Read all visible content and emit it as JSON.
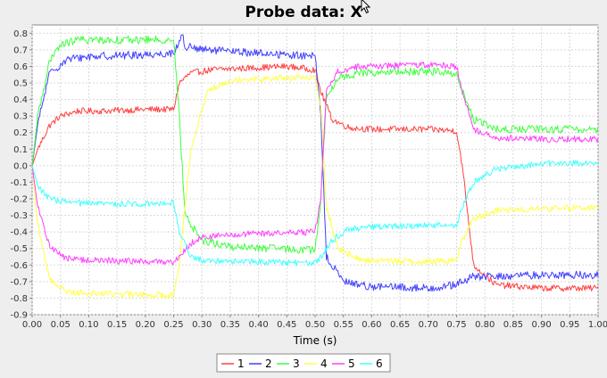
{
  "chart_data": {
    "type": "line",
    "title": "Probe data: X",
    "xlabel": "Time (s)",
    "ylabel": "",
    "xlim": [
      0,
      1.0
    ],
    "ylim": [
      -0.9,
      0.85
    ],
    "grid": true,
    "legend_position": "bottom",
    "x_ticks": [
      "0.00",
      "0.05",
      "0.10",
      "0.15",
      "0.20",
      "0.25",
      "0.30",
      "0.35",
      "0.40",
      "0.45",
      "0.50",
      "0.55",
      "0.60",
      "0.65",
      "0.70",
      "0.75",
      "0.80",
      "0.85",
      "0.90",
      "0.95",
      "1.00"
    ],
    "y_ticks": [
      "0.8",
      "0.7",
      "0.6",
      "0.5",
      "0.4",
      "0.3",
      "0.2",
      "0.1",
      "0.0",
      "-0.1",
      "-0.2",
      "-0.3",
      "-0.4",
      "-0.5",
      "-0.6",
      "-0.7",
      "-0.8",
      "-0.9"
    ],
    "series": [
      {
        "name": "1",
        "color": "#ff4040",
        "noise": 0.012,
        "x": [
          0,
          0.01,
          0.03,
          0.05,
          0.08,
          0.12,
          0.2,
          0.25,
          0.26,
          0.28,
          0.32,
          0.45,
          0.5,
          0.51,
          0.53,
          0.56,
          0.6,
          0.7,
          0.75,
          0.76,
          0.78,
          0.82,
          0.9,
          1.0
        ],
        "y": [
          0.0,
          0.1,
          0.24,
          0.3,
          0.33,
          0.33,
          0.34,
          0.34,
          0.5,
          0.56,
          0.58,
          0.6,
          0.58,
          0.45,
          0.28,
          0.23,
          0.22,
          0.22,
          0.21,
          0.0,
          -0.6,
          -0.72,
          -0.74,
          -0.74
        ]
      },
      {
        "name": "2",
        "color": "#4040ff",
        "noise": 0.015,
        "x": [
          0,
          0.01,
          0.03,
          0.06,
          0.1,
          0.2,
          0.25,
          0.26,
          0.27,
          0.3,
          0.4,
          0.5,
          0.51,
          0.52,
          0.55,
          0.6,
          0.7,
          0.75,
          0.76,
          0.78,
          0.82,
          0.9,
          1.0
        ],
        "y": [
          0.0,
          0.25,
          0.55,
          0.64,
          0.66,
          0.67,
          0.68,
          0.75,
          0.72,
          0.7,
          0.68,
          0.66,
          0.3,
          -0.55,
          -0.7,
          -0.73,
          -0.74,
          -0.72,
          -0.7,
          -0.67,
          -0.67,
          -0.66,
          -0.66
        ],
        "spikes": [
          [
            0.265,
            0.79
          ]
        ]
      },
      {
        "name": "3",
        "color": "#40ff40",
        "noise": 0.015,
        "x": [
          0,
          0.01,
          0.03,
          0.05,
          0.08,
          0.15,
          0.25,
          0.26,
          0.27,
          0.3,
          0.35,
          0.5,
          0.51,
          0.52,
          0.54,
          0.58,
          0.7,
          0.75,
          0.76,
          0.78,
          0.82,
          0.9,
          1.0
        ],
        "y": [
          0.0,
          0.3,
          0.62,
          0.73,
          0.76,
          0.76,
          0.76,
          0.3,
          -0.3,
          -0.45,
          -0.49,
          -0.51,
          -0.2,
          0.4,
          0.53,
          0.56,
          0.57,
          0.56,
          0.45,
          0.28,
          0.22,
          0.22,
          0.22
        ]
      },
      {
        "name": "4",
        "color": "#ffff40",
        "noise": 0.012,
        "x": [
          0,
          0.01,
          0.03,
          0.06,
          0.1,
          0.2,
          0.25,
          0.26,
          0.28,
          0.31,
          0.35,
          0.45,
          0.5,
          0.51,
          0.52,
          0.54,
          0.58,
          0.7,
          0.75,
          0.76,
          0.78,
          0.82,
          0.9,
          1.0
        ],
        "y": [
          0.0,
          -0.35,
          -0.68,
          -0.76,
          -0.77,
          -0.78,
          -0.78,
          -0.6,
          0.1,
          0.45,
          0.52,
          0.53,
          0.53,
          0.35,
          -0.25,
          -0.5,
          -0.57,
          -0.58,
          -0.57,
          -0.45,
          -0.32,
          -0.27,
          -0.26,
          -0.25
        ]
      },
      {
        "name": "5",
        "color": "#ff40ff",
        "noise": 0.012,
        "x": [
          0,
          0.01,
          0.03,
          0.06,
          0.1,
          0.2,
          0.25,
          0.26,
          0.28,
          0.3,
          0.4,
          0.5,
          0.51,
          0.52,
          0.54,
          0.58,
          0.7,
          0.75,
          0.76,
          0.78,
          0.82,
          0.9,
          1.0
        ],
        "y": [
          0.0,
          -0.25,
          -0.48,
          -0.56,
          -0.57,
          -0.58,
          -0.58,
          -0.55,
          -0.47,
          -0.43,
          -0.41,
          -0.4,
          -0.2,
          0.45,
          0.57,
          0.6,
          0.61,
          0.6,
          0.45,
          0.22,
          0.17,
          0.16,
          0.16
        ]
      },
      {
        "name": "6",
        "color": "#40ffff",
        "noise": 0.012,
        "x": [
          0,
          0.01,
          0.03,
          0.06,
          0.1,
          0.2,
          0.25,
          0.26,
          0.28,
          0.3,
          0.4,
          0.5,
          0.51,
          0.53,
          0.56,
          0.6,
          0.7,
          0.75,
          0.76,
          0.78,
          0.82,
          0.9,
          1.0
        ],
        "y": [
          0.0,
          -0.12,
          -0.2,
          -0.22,
          -0.23,
          -0.23,
          -0.22,
          -0.4,
          -0.55,
          -0.57,
          -0.58,
          -0.59,
          -0.55,
          -0.45,
          -0.38,
          -0.37,
          -0.36,
          -0.36,
          -0.25,
          -0.1,
          -0.02,
          0.01,
          0.02
        ]
      }
    ]
  }
}
